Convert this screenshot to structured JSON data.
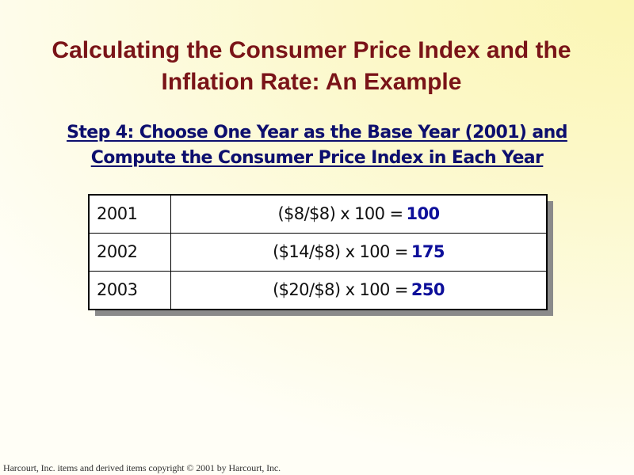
{
  "slide": {
    "title_line1": "Calculating the Consumer Price Index and the",
    "title_line2": "Inflation Rate: An Example",
    "step_line1": "Step 4:  Choose One Year as the Base Year (2001) and",
    "step_line2": "Compute the Consumer Price Index in Each Year"
  },
  "cpi_table": {
    "rows": [
      {
        "year": "2001",
        "formula": "($8/$8) x 100 =",
        "result": "100"
      },
      {
        "year": "2002",
        "formula": "($14/$8) x 100 =",
        "result": "175"
      },
      {
        "year": "2003",
        "formula": "($20/$8) x 100 =",
        "result": "250"
      }
    ]
  },
  "footer": {
    "copyright": "Harcourt, Inc. items and derived items copyright © 2001 by Harcourt, Inc."
  },
  "colors": {
    "title": "#7a1418",
    "step_heading": "#0d0f6e",
    "result": "#0d0f9a",
    "background": "#fcf8c8"
  }
}
